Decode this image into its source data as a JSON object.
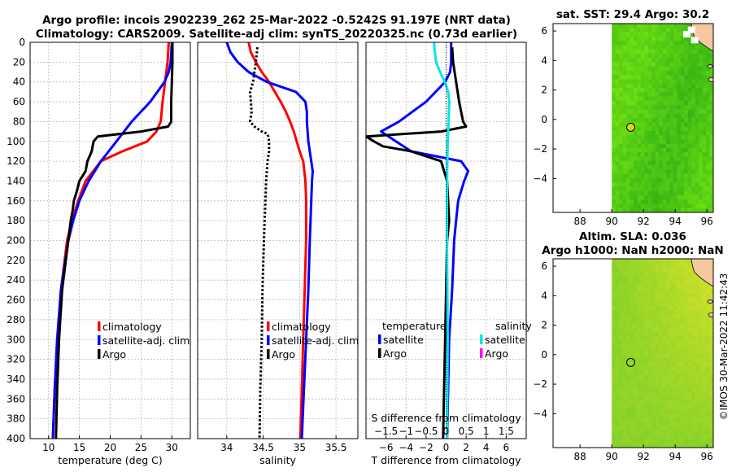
{
  "figure_title_line1": "Argo profile: incois 2902239_262 25-Mar-2022 -0.5242S 91.197E (NRT data)",
  "figure_title_line2": "Climatology: CARS2009. Satellite-adj clim: synTS_20220325.nc (0.73d earlier)",
  "watermark": "©IMOS 30-Mar-2022 11:42:43",
  "colors": {
    "climatology": "#ff0000",
    "satellite": "#0000ff",
    "argo": "#000000",
    "sal_satellite": "#00e5ee",
    "sal_argo": "#ff00ff",
    "map_land": "#f5c8a0",
    "map_nodata": "#ffffff"
  },
  "chart_data": [
    {
      "id": "temperature",
      "type": "line",
      "xlabel": "temperature (deg C)",
      "ylabel": "",
      "xlim": [
        7,
        33
      ],
      "ylim": [
        400,
        0
      ],
      "xticks": [
        10,
        15,
        20,
        25,
        30
      ],
      "yticks": [
        0,
        20,
        40,
        60,
        80,
        100,
        120,
        140,
        160,
        180,
        200,
        220,
        240,
        260,
        280,
        300,
        320,
        340,
        360,
        380,
        400
      ],
      "legend": [
        "climatology",
        "satellite-adj. clim",
        "Argo"
      ],
      "series": [
        {
          "name": "climatology",
          "color": "#ff0000",
          "depth": [
            0,
            20,
            40,
            60,
            80,
            90,
            100,
            110,
            120,
            140,
            160,
            180,
            200,
            250,
            300,
            350,
            400
          ],
          "values": [
            29.5,
            29.3,
            28.9,
            28.5,
            28.2,
            27.5,
            26.0,
            22.0,
            18.5,
            16.0,
            14.8,
            13.8,
            13.0,
            12.0,
            11.4,
            11.0,
            10.7
          ]
        },
        {
          "name": "satellite-adj. clim",
          "color": "#0000ff",
          "depth": [
            0,
            20,
            30,
            40,
            60,
            80,
            100,
            120,
            140,
            160,
            180,
            200,
            250,
            300,
            350,
            400
          ],
          "values": [
            30.0,
            29.8,
            29.5,
            28.8,
            26.5,
            23.5,
            21.0,
            18.5,
            16.5,
            15.0,
            14.0,
            13.2,
            12.0,
            11.4,
            11.0,
            10.7
          ]
        },
        {
          "name": "Argo",
          "color": "#000000",
          "depth": [
            0,
            20,
            40,
            60,
            80,
            85,
            90,
            95,
            100,
            110,
            120,
            130,
            140,
            150,
            160,
            170,
            180,
            200,
            220,
            250,
            280,
            300,
            350,
            400
          ],
          "values": [
            30.1,
            30.1,
            30.0,
            29.9,
            29.9,
            29.4,
            25.0,
            18.0,
            17.3,
            17.0,
            16.3,
            16.0,
            15.0,
            14.6,
            14.1,
            13.9,
            13.6,
            13.2,
            12.8,
            12.2,
            11.9,
            11.7,
            11.4,
            11.2
          ]
        }
      ]
    },
    {
      "id": "salinity",
      "type": "line",
      "xlabel": "salinity",
      "ylabel": "",
      "xlim": [
        33.6,
        35.8
      ],
      "ylim": [
        400,
        0
      ],
      "xticks": [
        34,
        34.5,
        35,
        35.5
      ],
      "legend": [
        "climatology",
        "satellite-adj. clim",
        "Argo"
      ],
      "series": [
        {
          "name": "climatology",
          "color": "#ff0000",
          "depth": [
            0,
            10,
            20,
            30,
            40,
            50,
            60,
            70,
            80,
            90,
            100,
            110,
            120,
            140,
            160,
            200,
            250,
            300,
            350,
            400
          ],
          "values": [
            34.3,
            34.33,
            34.4,
            34.48,
            34.58,
            34.66,
            34.74,
            34.81,
            34.87,
            34.92,
            34.96,
            35.0,
            35.05,
            35.08,
            35.09,
            35.09,
            35.07,
            35.05,
            35.03,
            35.01
          ]
        },
        {
          "name": "satellite-adj. clim",
          "color": "#0000ff",
          "depth": [
            0,
            10,
            20,
            30,
            40,
            45,
            50,
            60,
            70,
            80,
            100,
            120,
            130,
            140,
            160,
            200,
            250,
            300,
            350,
            400
          ],
          "values": [
            34.0,
            34.05,
            34.15,
            34.3,
            34.55,
            34.75,
            34.95,
            35.08,
            35.1,
            35.1,
            35.12,
            35.16,
            35.18,
            35.17,
            35.16,
            35.14,
            35.12,
            35.09,
            35.06,
            35.03
          ]
        },
        {
          "name": "Argo",
          "color": "#000000",
          "dashed": true,
          "depth": [
            5,
            20,
            40,
            50,
            60,
            70,
            80,
            85,
            90,
            92,
            95,
            100,
            110,
            120,
            140,
            160,
            200,
            250,
            300,
            350,
            400
          ],
          "values": [
            34.42,
            34.4,
            34.36,
            34.32,
            34.33,
            34.34,
            34.32,
            34.38,
            34.48,
            34.55,
            34.57,
            34.58,
            34.58,
            34.56,
            34.54,
            34.53,
            34.51,
            34.49,
            34.48,
            34.46,
            34.45
          ]
        }
      ]
    },
    {
      "id": "difference",
      "type": "line",
      "xlabel": "T difference from climatology",
      "xlabel_top": "S difference from climatology",
      "xlim": [
        -8,
        8
      ],
      "ylim": [
        400,
        0
      ],
      "xticks": [
        -6,
        -4,
        -2,
        0,
        2,
        4,
        6
      ],
      "xticks_s": [
        -1.5,
        -1,
        -0.5,
        0,
        0.5,
        1,
        1.5
      ],
      "s_scale": 4,
      "legend_temperature_title": "temperature",
      "legend_salinity_title": "salinity",
      "legend_temperature": [
        "satellite",
        "Argo"
      ],
      "legend_salinity": [
        "satellite",
        "Argo"
      ],
      "series": [
        {
          "name": "T satellite",
          "color": "#0000ff",
          "depth": [
            0,
            20,
            30,
            40,
            60,
            80,
            90,
            100,
            110,
            120,
            130,
            140,
            150,
            160,
            180,
            200,
            250,
            300,
            350,
            400
          ],
          "values": [
            0.5,
            0.5,
            0.4,
            -0.1,
            -2.0,
            -4.7,
            -6.5,
            -5.0,
            -3.5,
            1.5,
            2.2,
            1.8,
            1.5,
            1.2,
            1.0,
            0.8,
            0.6,
            0.3,
            0.2,
            0.1
          ]
        },
        {
          "name": "T Argo",
          "color": "#000000",
          "depth": [
            5,
            20,
            40,
            60,
            80,
            85,
            90,
            95,
            100,
            105,
            110,
            120,
            140,
            160,
            180,
            200,
            250,
            300,
            350,
            400
          ],
          "values": [
            0.6,
            0.7,
            1.0,
            1.3,
            1.7,
            2.0,
            -0.5,
            -8.0,
            -7.2,
            -6.3,
            -3.5,
            -0.5,
            0.1,
            0.2,
            0.3,
            0.1,
            0.0,
            -0.1,
            -0.2,
            -0.3
          ]
        },
        {
          "name": "S satellite",
          "color": "#00e5ee",
          "scale": "s",
          "depth": [
            0,
            10,
            20,
            30,
            40,
            50,
            60,
            80,
            100,
            120,
            140,
            160,
            200,
            250,
            300,
            350,
            400
          ],
          "values": [
            -0.3,
            -0.28,
            -0.25,
            -0.15,
            -0.03,
            0.05,
            0.08,
            0.06,
            0.04,
            0.03,
            0.025,
            0.02,
            0.02,
            0.03,
            0.04,
            0.03,
            0.02
          ]
        },
        {
          "name": "S Argo",
          "color": "#ff00ff",
          "scale": "s",
          "depth": [],
          "values": []
        }
      ]
    },
    {
      "id": "sst_map",
      "type": "heatmap",
      "title": "sat. SST: 29.4 Argo: 30.2",
      "xlim": [
        86.3,
        96.4
      ],
      "ylim": [
        -6.3,
        6.5
      ],
      "data_lon_min": 90,
      "xticks": [
        88,
        90,
        92,
        94,
        96
      ],
      "yticks": [
        -4,
        -2,
        0,
        2,
        4,
        6
      ],
      "float_lon": 91.197,
      "float_lat": -0.5242,
      "float_fill": "#c8dc14"
    },
    {
      "id": "sla_map",
      "type": "heatmap",
      "title_line1": "Altim. SLA: 0.036",
      "title_line2": "Argo h1000: NaN h2000: NaN",
      "xlim": [
        86.3,
        96.4
      ],
      "ylim": [
        -6.3,
        6.5
      ],
      "data_lon_min": 90,
      "xticks": [
        88,
        90,
        92,
        94,
        96
      ],
      "yticks": [
        -4,
        -2,
        0,
        2,
        4,
        6
      ],
      "float_lon": 91.197,
      "float_lat": -0.5242,
      "float_fill": "none"
    }
  ]
}
